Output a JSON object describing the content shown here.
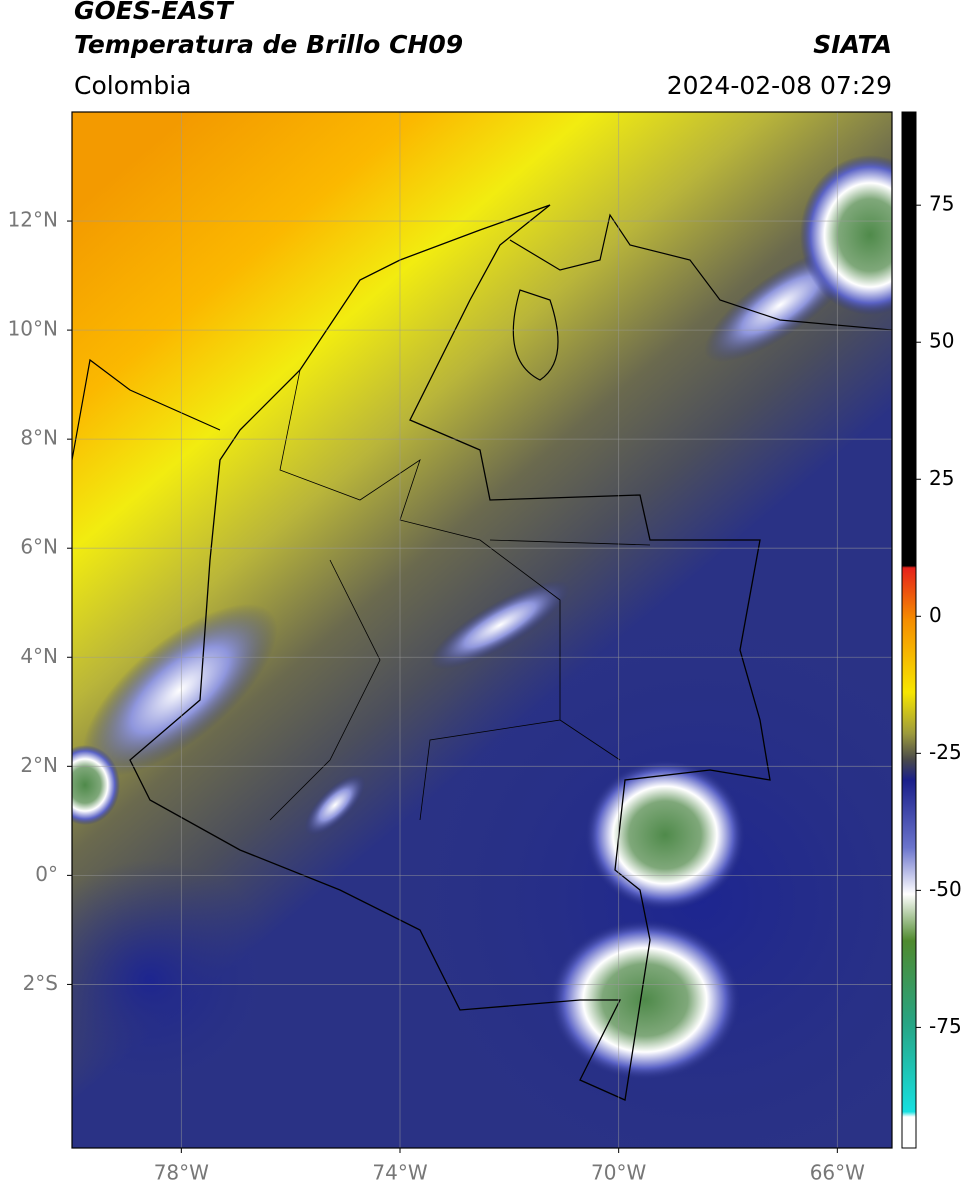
{
  "header": {
    "title": "GOES-EAST",
    "subtitle": "Temperatura de Brillo CH09",
    "source": "SIATA",
    "region": "Colombia",
    "timestamp": "2024-02-08 07:29"
  },
  "map": {
    "lon_range": [
      -80,
      -65
    ],
    "lat_range": [
      -5,
      14
    ],
    "grid": true,
    "lon_ticks": [
      {
        "value": -78,
        "label": "78°W"
      },
      {
        "value": -74,
        "label": "74°W"
      },
      {
        "value": -70,
        "label": "70°W"
      },
      {
        "value": -66,
        "label": "66°W"
      }
    ],
    "lat_ticks": [
      {
        "value": 12,
        "label": "12°N"
      },
      {
        "value": 10,
        "label": "10°N"
      },
      {
        "value": 8,
        "label": "8°N"
      },
      {
        "value": 6,
        "label": "6°N"
      },
      {
        "value": 4,
        "label": "4°N"
      },
      {
        "value": 2,
        "label": "2°N"
      },
      {
        "value": 0,
        "label": "0°"
      },
      {
        "value": -2,
        "label": "2°S"
      }
    ]
  },
  "colorbar": {
    "range": [
      -97,
      92
    ],
    "ticks": [
      75,
      50,
      25,
      0,
      -25,
      -50,
      -75
    ]
  }
}
